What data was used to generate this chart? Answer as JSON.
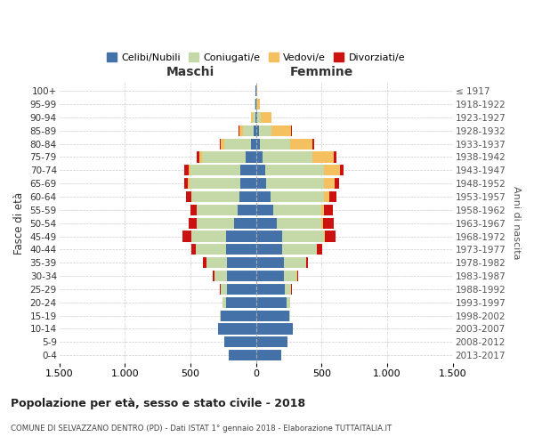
{
  "age_groups": [
    "0-4",
    "5-9",
    "10-14",
    "15-19",
    "20-24",
    "25-29",
    "30-34",
    "35-39",
    "40-44",
    "45-49",
    "50-54",
    "55-59",
    "60-64",
    "65-69",
    "70-74",
    "75-79",
    "80-84",
    "85-89",
    "90-94",
    "95-99",
    "100+"
  ],
  "birth_years": [
    "2013-2017",
    "2008-2012",
    "2003-2007",
    "1998-2002",
    "1993-1997",
    "1988-1992",
    "1983-1987",
    "1978-1982",
    "1973-1977",
    "1968-1972",
    "1963-1967",
    "1958-1962",
    "1953-1957",
    "1948-1952",
    "1943-1947",
    "1938-1942",
    "1933-1937",
    "1928-1932",
    "1923-1927",
    "1918-1922",
    "≤ 1917"
  ],
  "maschi": {
    "celibi": [
      210,
      240,
      290,
      270,
      230,
      220,
      220,
      220,
      230,
      230,
      170,
      140,
      130,
      120,
      120,
      80,
      40,
      20,
      8,
      4,
      2
    ],
    "coniugati": [
      0,
      1,
      2,
      5,
      25,
      50,
      100,
      160,
      230,
      260,
      280,
      310,
      360,
      390,
      380,
      330,
      200,
      80,
      20,
      5,
      2
    ],
    "vedovi": [
      0,
      0,
      0,
      0,
      0,
      0,
      0,
      1,
      1,
      2,
      2,
      3,
      5,
      10,
      15,
      20,
      30,
      30,
      10,
      2,
      0
    ],
    "divorziati": [
      0,
      0,
      0,
      1,
      2,
      5,
      10,
      25,
      30,
      70,
      60,
      50,
      40,
      30,
      30,
      20,
      5,
      2,
      0,
      0,
      0
    ]
  },
  "femmine": {
    "nubili": [
      190,
      240,
      280,
      250,
      230,
      220,
      210,
      210,
      200,
      200,
      160,
      130,
      110,
      80,
      70,
      50,
      30,
      20,
      10,
      5,
      2
    ],
    "coniugate": [
      0,
      1,
      3,
      8,
      30,
      50,
      100,
      170,
      260,
      320,
      340,
      370,
      410,
      440,
      450,
      380,
      230,
      100,
      25,
      5,
      2
    ],
    "vedove": [
      0,
      0,
      0,
      0,
      0,
      0,
      1,
      2,
      3,
      5,
      10,
      20,
      40,
      80,
      120,
      160,
      170,
      150,
      80,
      20,
      2
    ],
    "divorziate": [
      0,
      0,
      0,
      1,
      2,
      5,
      10,
      15,
      40,
      80,
      80,
      65,
      50,
      35,
      30,
      25,
      10,
      5,
      0,
      0,
      0
    ]
  },
  "colors": {
    "celibi": "#4472a8",
    "coniugati": "#c5d8a8",
    "vedovi": "#f5c060",
    "divorziati": "#cc1111"
  },
  "title": "Popolazione per età, sesso e stato civile - 2018",
  "subtitle": "COMUNE DI SELVAZZANO DENTRO (PD) - Dati ISTAT 1° gennaio 2018 - Elaborazione TUTTAITALIA.IT",
  "ylabel": "Fasce di età",
  "ylabel_right": "Anni di nascita",
  "xlim": 1500,
  "xtick_vals": [
    -1500,
    -1000,
    -500,
    0,
    500,
    1000,
    1500
  ],
  "xtick_labels": [
    "1.500",
    "1.000",
    "500",
    "0",
    "500",
    "1.000",
    "1.500"
  ],
  "legend_labels": [
    "Celibi/Nubili",
    "Coniugati/e",
    "Vedovi/e",
    "Divorziati/e"
  ],
  "maschi_label": "Maschi",
  "femmine_label": "Femmine"
}
